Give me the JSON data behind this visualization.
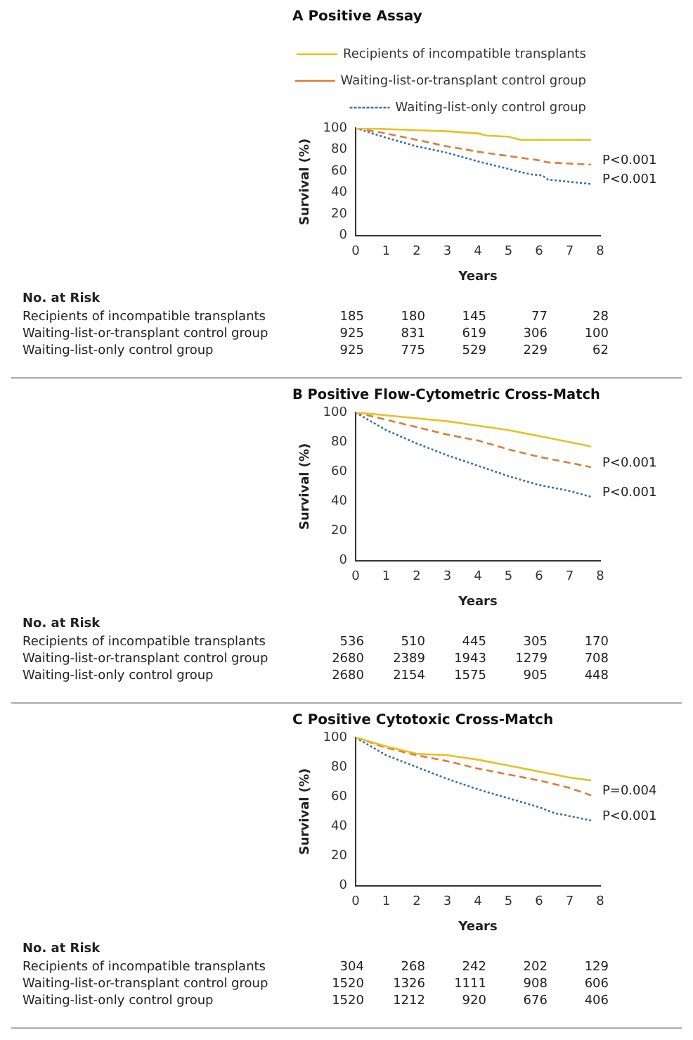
{
  "chart_data": [
    {
      "type": "line",
      "title": "A Positive Assay",
      "xlabel": "Years",
      "ylabel": "Survival (%)",
      "xlim": [
        0,
        8
      ],
      "xticks": [
        0,
        1,
        2,
        3,
        4,
        5,
        6,
        7,
        8
      ],
      "ylim": [
        0,
        100
      ],
      "yticks": [
        0,
        20,
        40,
        60,
        80,
        100
      ],
      "grid": false,
      "legend": "top",
      "marker": "none",
      "series": [
        {
          "name": "Recipients of incompatible transplants",
          "color": "#e8c020",
          "line_style": "solid",
          "x": [
            0,
            1,
            2,
            3,
            4,
            4.3,
            5,
            5.4,
            6,
            7,
            7.7
          ],
          "values": [
            100,
            99,
            98,
            97,
            95,
            93,
            92,
            89,
            89,
            89,
            89
          ]
        },
        {
          "name": "Waiting-list-or-transplant control group",
          "color": "#e07b39",
          "line_style": "dashed",
          "x": [
            0,
            1,
            2,
            3,
            4,
            5,
            6,
            6.3,
            7,
            7.7
          ],
          "values": [
            100,
            95,
            89,
            83,
            78,
            74,
            70,
            68,
            67,
            66
          ]
        },
        {
          "name": "Waiting-list-only control group",
          "color": "#3a6ea5",
          "line_style": "dotted",
          "x": [
            0,
            1,
            2,
            3,
            3.5,
            4,
            5,
            5.7,
            6.1,
            6.3,
            7,
            7.7
          ],
          "values": [
            100,
            91,
            83,
            77,
            73,
            69,
            62,
            57,
            56,
            52,
            50,
            48
          ]
        }
      ],
      "annotations": [
        "P<0.001",
        "P<0.001",
        "No. at Risk",
        "Recipients of incompatible transplants",
        "185",
        "180",
        "145",
        "77",
        "28",
        "Waiting-list-or-transplant control group",
        "925",
        "831",
        "619",
        "306",
        "100",
        "Waiting-list-only control group",
        "925",
        "775",
        "529",
        "229",
        "62"
      ]
    },
    {
      "type": "line",
      "title": "B Positive Flow-Cytometric Cross-Match",
      "xlabel": "Years",
      "ylabel": "Survival (%)",
      "xlim": [
        0,
        8
      ],
      "xticks": [
        0,
        1,
        2,
        3,
        4,
        5,
        6,
        7,
        8
      ],
      "ylim": [
        0,
        100
      ],
      "yticks": [
        0,
        20,
        40,
        60,
        80,
        100
      ],
      "grid": false,
      "marker": "none",
      "series": [
        {
          "color": "#e8c020",
          "line_style": "solid",
          "x": [
            0,
            1,
            2,
            3,
            4,
            5,
            6,
            7,
            7.7
          ],
          "values": [
            100,
            98,
            96,
            94,
            91,
            88,
            84,
            80,
            77
          ]
        },
        {
          "color": "#e07b39",
          "line_style": "dashed",
          "x": [
            0,
            1,
            2,
            3,
            4,
            5,
            6,
            7,
            7.7
          ],
          "values": [
            100,
            95,
            90,
            85,
            81,
            75,
            70,
            66,
            63
          ]
        },
        {
          "color": "#3a6ea5",
          "line_style": "dotted",
          "x": [
            0,
            1,
            2,
            3,
            4,
            5,
            6,
            7,
            7.7
          ],
          "values": [
            100,
            88,
            79,
            71,
            64,
            57,
            51,
            47,
            43
          ]
        }
      ],
      "annotations": [
        "P<0.001",
        "P<0.001",
        "No. at Risk",
        "Recipients of incompatible transplants",
        "536",
        "510",
        "445",
        "305",
        "170",
        "Waiting-list-or-transplant control group",
        "2680",
        "2389",
        "1943",
        "1279",
        "708",
        "Waiting-list-only control group",
        "2680",
        "2154",
        "1575",
        "905",
        "448"
      ]
    },
    {
      "type": "line",
      "title": "C Positive Cytotoxic Cross-Match",
      "xlabel": "Years",
      "ylabel": "Survival (%)",
      "xlim": [
        0,
        8
      ],
      "xticks": [
        0,
        1,
        2,
        3,
        4,
        5,
        6,
        7,
        8
      ],
      "ylim": [
        0,
        100
      ],
      "yticks": [
        0,
        20,
        40,
        60,
        80,
        100
      ],
      "grid": false,
      "marker": "none",
      "series": [
        {
          "color": "#e8c020",
          "line_style": "solid",
          "x": [
            0,
            1,
            2,
            3,
            4,
            5,
            6,
            6.5,
            7,
            7.7
          ],
          "values": [
            100,
            94,
            89,
            88,
            85,
            81,
            77,
            75,
            73,
            71
          ]
        },
        {
          "color": "#e07b39",
          "line_style": "dashed",
          "x": [
            0,
            1,
            2,
            3,
            4,
            5,
            6,
            7,
            7.7
          ],
          "values": [
            100,
            93,
            88,
            84,
            79,
            75,
            71,
            66,
            61
          ]
        },
        {
          "color": "#3a6ea5",
          "line_style": "dotted",
          "x": [
            0,
            1,
            2,
            3,
            4,
            5,
            6,
            6.5,
            7,
            7.7
          ],
          "values": [
            100,
            88,
            80,
            72,
            65,
            59,
            53,
            49,
            47,
            44
          ]
        }
      ],
      "annotations": [
        "P=0.004",
        "P<0.001",
        "No. at Risk",
        "Recipients of incompatible transplants",
        "304",
        "268",
        "242",
        "202",
        "129",
        "Waiting-list-or-transplant control group",
        "1520",
        "1326",
        "1111",
        "908",
        "606",
        "Waiting-list-only control group",
        "1520",
        "1212",
        "920",
        "676",
        "406"
      ]
    }
  ]
}
